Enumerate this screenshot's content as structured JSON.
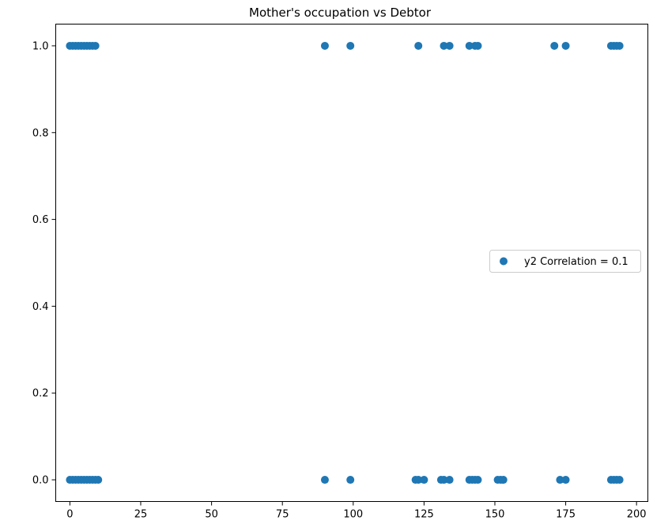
{
  "chart_data": {
    "type": "scatter",
    "title": "Mother's occupation vs Debtor",
    "xlabel": "",
    "ylabel": "",
    "xlim": [
      -5,
      204
    ],
    "ylim": [
      -0.05,
      1.05
    ],
    "xticks": [
      0,
      25,
      50,
      75,
      100,
      125,
      150,
      175,
      200
    ],
    "yticks": [
      0.0,
      0.2,
      0.4,
      0.6,
      0.8,
      1.0
    ],
    "xtick_labels": [
      "0",
      "25",
      "50",
      "75",
      "100",
      "125",
      "150",
      "175",
      "200"
    ],
    "ytick_labels": [
      "0.0",
      "0.2",
      "0.4",
      "0.6",
      "0.8",
      "1.0"
    ],
    "grid": false,
    "legend_position": "center-right",
    "series": [
      {
        "name": "y2 Correlation = 0.1",
        "color": "#1f77b4",
        "marker": "circle",
        "points": [
          {
            "x": 0,
            "y": 1
          },
          {
            "x": 1,
            "y": 1
          },
          {
            "x": 2,
            "y": 1
          },
          {
            "x": 3,
            "y": 1
          },
          {
            "x": 4,
            "y": 1
          },
          {
            "x": 5,
            "y": 1
          },
          {
            "x": 6,
            "y": 1
          },
          {
            "x": 7,
            "y": 1
          },
          {
            "x": 8,
            "y": 1
          },
          {
            "x": 9,
            "y": 1
          },
          {
            "x": 90,
            "y": 1
          },
          {
            "x": 99,
            "y": 1
          },
          {
            "x": 123,
            "y": 1
          },
          {
            "x": 132,
            "y": 1
          },
          {
            "x": 134,
            "y": 1
          },
          {
            "x": 141,
            "y": 1
          },
          {
            "x": 143,
            "y": 1
          },
          {
            "x": 144,
            "y": 1
          },
          {
            "x": 171,
            "y": 1
          },
          {
            "x": 175,
            "y": 1
          },
          {
            "x": 191,
            "y": 1
          },
          {
            "x": 192,
            "y": 1
          },
          {
            "x": 193,
            "y": 1
          },
          {
            "x": 194,
            "y": 1
          },
          {
            "x": 0,
            "y": 0
          },
          {
            "x": 1,
            "y": 0
          },
          {
            "x": 2,
            "y": 0
          },
          {
            "x": 3,
            "y": 0
          },
          {
            "x": 4,
            "y": 0
          },
          {
            "x": 5,
            "y": 0
          },
          {
            "x": 6,
            "y": 0
          },
          {
            "x": 7,
            "y": 0
          },
          {
            "x": 8,
            "y": 0
          },
          {
            "x": 9,
            "y": 0
          },
          {
            "x": 10,
            "y": 0
          },
          {
            "x": 90,
            "y": 0
          },
          {
            "x": 99,
            "y": 0
          },
          {
            "x": 122,
            "y": 0
          },
          {
            "x": 123,
            "y": 0
          },
          {
            "x": 125,
            "y": 0
          },
          {
            "x": 131,
            "y": 0
          },
          {
            "x": 132,
            "y": 0
          },
          {
            "x": 134,
            "y": 0
          },
          {
            "x": 141,
            "y": 0
          },
          {
            "x": 142,
            "y": 0
          },
          {
            "x": 143,
            "y": 0
          },
          {
            "x": 144,
            "y": 0
          },
          {
            "x": 151,
            "y": 0
          },
          {
            "x": 152,
            "y": 0
          },
          {
            "x": 153,
            "y": 0
          },
          {
            "x": 173,
            "y": 0
          },
          {
            "x": 175,
            "y": 0
          },
          {
            "x": 191,
            "y": 0
          },
          {
            "x": 192,
            "y": 0
          },
          {
            "x": 193,
            "y": 0
          },
          {
            "x": 194,
            "y": 0
          }
        ]
      }
    ]
  }
}
